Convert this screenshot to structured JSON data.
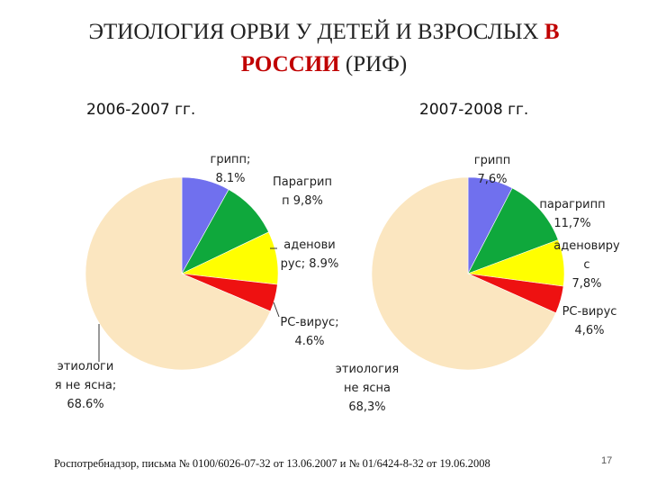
{
  "slide": {
    "title_line1_part1": "ЭТИОЛОГИЯ ОРВИ У ДЕТЕЙ И ВЗРОСЛЫХ",
    "title_line1_red": "В",
    "title_line2_red": "РОССИИ",
    "title_line2_part2": "(РИФ)",
    "footer": "Роспотребнадзор, письма № 0100/6026-07-32 от 13.06.2007 и № 01/6424-8-32 от 19.06.2008",
    "page_number": "17"
  },
  "colors": {
    "flu": "#7070ee",
    "parainfluenza": "#0fa83c",
    "adenovirus": "#ffff00",
    "rs_virus": "#ee1111",
    "unknown": "#fbe6c0"
  },
  "chart_data": [
    {
      "type": "pie",
      "title": "2006-2007 гг.",
      "slices": [
        {
          "key": "flu",
          "value": 8.1,
          "label_lines": [
            "грипп;",
            "8.1%"
          ]
        },
        {
          "key": "parainfluenza",
          "value": 9.8,
          "label_lines": [
            "Парагрип",
            "п 9,8%"
          ]
        },
        {
          "key": "adenovirus",
          "value": 8.9,
          "label_lines": [
            "аденови",
            "рус; 8.9%"
          ]
        },
        {
          "key": "rs_virus",
          "value": 4.6,
          "label_lines": [
            "РС-вирус;",
            "4.6%"
          ]
        },
        {
          "key": "unknown",
          "value": 68.6,
          "label_lines": [
            "этиологи",
            "я не ясна;",
            "68.6%"
          ]
        }
      ]
    },
    {
      "type": "pie",
      "title": "2007-2008 гг.",
      "slices": [
        {
          "key": "flu",
          "value": 7.6,
          "label_lines": [
            "грипп",
            "7,6%"
          ]
        },
        {
          "key": "parainfluenza",
          "value": 11.7,
          "label_lines": [
            "парагрипп",
            "11,7%"
          ]
        },
        {
          "key": "adenovirus",
          "value": 7.8,
          "label_lines": [
            "аденовиру",
            "с",
            "7,8%"
          ]
        },
        {
          "key": "rs_virus",
          "value": 4.6,
          "label_lines": [
            "РС-вирус",
            "4,6%"
          ]
        },
        {
          "key": "unknown",
          "value": 68.3,
          "label_lines": [
            "этиология",
            "не ясна",
            "68,3%"
          ]
        }
      ]
    }
  ]
}
